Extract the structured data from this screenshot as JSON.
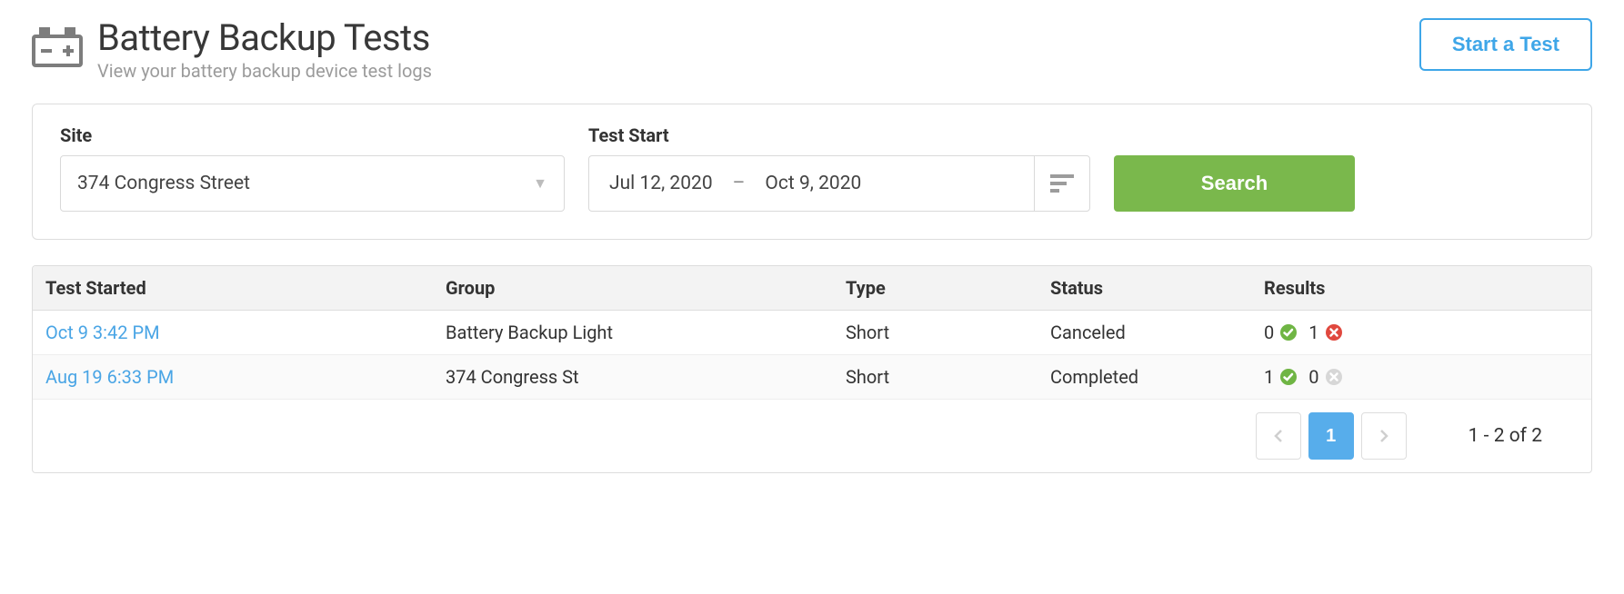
{
  "header": {
    "title": "Battery Backup Tests",
    "subtitle": "View your battery backup device test logs",
    "start_test_label": "Start a Test"
  },
  "filters": {
    "site_label": "Site",
    "site_value": "374 Congress Street",
    "test_start_label": "Test Start",
    "date_from": "Jul 12, 2020",
    "date_to": "Oct 9, 2020",
    "search_label": "Search"
  },
  "table": {
    "columns": {
      "started": "Test Started",
      "group": "Group",
      "type": "Type",
      "status": "Status",
      "results": "Results"
    },
    "rows": [
      {
        "started": "Oct 9 3:42 PM",
        "group": "Battery Backup Light",
        "type": "Short",
        "status": "Canceled",
        "pass_count": "0",
        "fail_count": "1",
        "fail_active": true
      },
      {
        "started": "Aug 19 6:33 PM",
        "group": "374 Congress St",
        "type": "Short",
        "status": "Completed",
        "pass_count": "1",
        "fail_count": "0",
        "fail_active": false
      }
    ]
  },
  "pager": {
    "current": "1",
    "summary": "1 - 2 of 2"
  },
  "colors": {
    "link": "#4aa5e5",
    "green": "#6fb544",
    "red": "#e0483e",
    "grey": "#d7d7d7",
    "search_btn": "#7ab84c",
    "primary": "#3ea6e8"
  }
}
